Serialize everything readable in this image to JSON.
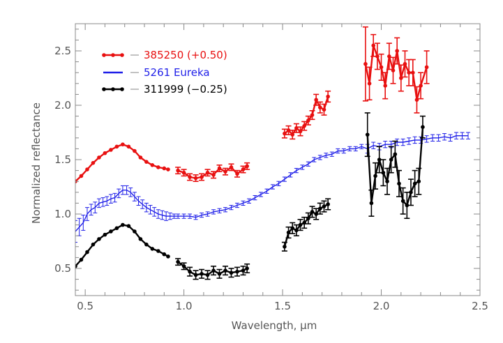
{
  "chart_data": {
    "type": "line",
    "title": "",
    "xlabel": "Wavelength, μm",
    "ylabel": "Normalized reflectance",
    "xlim": [
      0.45,
      2.5
    ],
    "ylim": [
      0.25,
      2.75
    ],
    "xticks": [
      0.5,
      1.0,
      1.5,
      2.0,
      2.5
    ],
    "xtick_labels": [
      "0.5",
      "1.0",
      "1.5",
      "2.0",
      "2.5"
    ],
    "yticks": [
      0.5,
      1.0,
      1.5,
      2.0,
      2.5
    ],
    "ytick_labels": [
      "0.5",
      "1.0",
      "1.5",
      "2.0",
      "2.5"
    ],
    "grid": false,
    "legend_position": "top-left",
    "legend": [
      {
        "label": "385250 (+0.50)",
        "color": "#e81010",
        "style": "line-dots"
      },
      {
        "label": "5261 Eureka",
        "color": "#1f1fe8",
        "style": "line"
      },
      {
        "label": "311999 (−0.25)",
        "color": "#000000",
        "style": "line-dots"
      }
    ],
    "series": [
      {
        "name": "385250 (+0.50)",
        "color": "#e81010",
        "style": "points-lines",
        "segments": [
          {
            "x": [
              0.45,
              0.48,
              0.51,
              0.54,
              0.57,
              0.6,
              0.63,
              0.66,
              0.69,
              0.72,
              0.75,
              0.78,
              0.81,
              0.84,
              0.87,
              0.9,
              0.92
            ],
            "y": [
              1.3,
              1.35,
              1.41,
              1.47,
              1.52,
              1.56,
              1.59,
              1.62,
              1.64,
              1.62,
              1.58,
              1.52,
              1.48,
              1.45,
              1.43,
              1.42,
              1.41
            ],
            "err": []
          },
          {
            "x": [
              0.97,
              1.0,
              1.03,
              1.06,
              1.09,
              1.12,
              1.15,
              1.18,
              1.21,
              1.24,
              1.27,
              1.3,
              1.32
            ],
            "y": [
              1.4,
              1.38,
              1.34,
              1.33,
              1.34,
              1.38,
              1.36,
              1.42,
              1.39,
              1.43,
              1.37,
              1.41,
              1.44
            ],
            "err": [
              0.03,
              0.03,
              0.03,
              0.03,
              0.03,
              0.03,
              0.03,
              0.03,
              0.03,
              0.03,
              0.03,
              0.03,
              0.03
            ]
          },
          {
            "x": [
              1.51,
              1.53,
              1.55,
              1.57,
              1.59,
              1.61,
              1.63,
              1.65,
              1.67,
              1.69,
              1.71,
              1.73
            ],
            "y": [
              1.74,
              1.77,
              1.73,
              1.79,
              1.76,
              1.81,
              1.86,
              1.91,
              2.05,
              1.98,
              1.96,
              2.08
            ],
            "err": [
              0.04,
              0.04,
              0.04,
              0.04,
              0.04,
              0.04,
              0.04,
              0.04,
              0.05,
              0.05,
              0.05,
              0.05
            ]
          },
          {
            "x": [
              1.92,
              1.94,
              1.96,
              1.98,
              2.0,
              2.02,
              2.04,
              2.06,
              2.08,
              2.1,
              2.12,
              2.14,
              2.16,
              2.18,
              2.2,
              2.23
            ],
            "y": [
              2.38,
              2.2,
              2.55,
              2.45,
              2.35,
              2.18,
              2.45,
              2.32,
              2.5,
              2.25,
              2.38,
              2.3,
              2.3,
              2.05,
              2.18,
              2.35
            ],
            "err": [
              0.34,
              0.15,
              0.1,
              0.12,
              0.12,
              0.12,
              0.12,
              0.12,
              0.12,
              0.12,
              0.12,
              0.12,
              0.12,
              0.12,
              0.12,
              0.15
            ]
          }
        ]
      },
      {
        "name": "5261 Eureka",
        "color": "#1f1fe8",
        "style": "line-errorbars",
        "segments": [
          {
            "x": [
              0.45,
              0.47,
              0.49,
              0.51,
              0.53,
              0.55,
              0.57,
              0.59,
              0.61,
              0.63,
              0.65,
              0.67,
              0.69,
              0.71,
              0.73,
              0.75,
              0.77,
              0.79,
              0.81,
              0.83,
              0.85,
              0.87,
              0.89,
              0.91,
              0.93,
              0.95,
              0.97,
              1.0,
              1.03,
              1.06,
              1.09,
              1.12,
              1.15,
              1.18,
              1.21,
              1.24,
              1.27,
              1.3,
              1.33,
              1.36,
              1.39,
              1.42,
              1.45,
              1.48,
              1.51,
              1.54,
              1.57,
              1.6,
              1.63,
              1.66,
              1.69,
              1.72,
              1.75,
              1.78,
              1.81,
              1.84,
              1.87,
              1.9,
              1.93,
              1.96,
              1.99,
              2.02,
              2.05,
              2.08,
              2.11,
              2.14,
              2.17,
              2.2,
              2.23,
              2.26,
              2.29,
              2.32,
              2.35,
              2.38,
              2.41,
              2.44
            ],
            "y": [
              0.84,
              0.88,
              0.92,
              1.0,
              1.04,
              1.06,
              1.1,
              1.11,
              1.12,
              1.14,
              1.15,
              1.19,
              1.22,
              1.22,
              1.2,
              1.16,
              1.12,
              1.09,
              1.06,
              1.04,
              1.02,
              1.0,
              0.99,
              0.98,
              0.98,
              0.98,
              0.98,
              0.98,
              0.98,
              0.97,
              0.99,
              1.0,
              1.02,
              1.03,
              1.04,
              1.06,
              1.08,
              1.1,
              1.12,
              1.15,
              1.18,
              1.21,
              1.25,
              1.28,
              1.32,
              1.36,
              1.4,
              1.43,
              1.46,
              1.5,
              1.52,
              1.54,
              1.55,
              1.58,
              1.58,
              1.6,
              1.6,
              1.62,
              1.6,
              1.63,
              1.62,
              1.64,
              1.64,
              1.66,
              1.66,
              1.67,
              1.68,
              1.68,
              1.69,
              1.7,
              1.7,
              1.71,
              1.7,
              1.72,
              1.72,
              1.72
            ],
            "err": [
              0.1,
              0.08,
              0.07,
              0.06,
              0.05,
              0.05,
              0.04,
              0.04,
              0.04,
              0.04,
              0.04,
              0.04,
              0.04,
              0.04,
              0.04,
              0.04,
              0.04,
              0.04,
              0.04,
              0.04,
              0.04,
              0.04,
              0.04,
              0.04,
              0.03,
              0.02,
              0.02,
              0.02,
              0.02,
              0.02,
              0.02,
              0.02,
              0.02,
              0.02,
              0.02,
              0.02,
              0.02,
              0.02,
              0.02,
              0.02,
              0.02,
              0.02,
              0.02,
              0.02,
              0.02,
              0.02,
              0.02,
              0.02,
              0.02,
              0.02,
              0.02,
              0.02,
              0.02,
              0.02,
              0.02,
              0.02,
              0.02,
              0.02,
              0.04,
              0.03,
              0.03,
              0.03,
              0.03,
              0.03,
              0.03,
              0.03,
              0.03,
              0.03,
              0.03,
              0.03,
              0.03,
              0.03,
              0.03,
              0.03,
              0.03,
              0.03
            ]
          }
        ]
      },
      {
        "name": "311999 (−0.25)",
        "color": "#000000",
        "style": "points-lines",
        "segments": [
          {
            "x": [
              0.45,
              0.48,
              0.51,
              0.54,
              0.57,
              0.6,
              0.63,
              0.66,
              0.69,
              0.72,
              0.75,
              0.78,
              0.81,
              0.84,
              0.87,
              0.9,
              0.92
            ],
            "y": [
              0.52,
              0.58,
              0.65,
              0.72,
              0.77,
              0.81,
              0.84,
              0.87,
              0.9,
              0.89,
              0.84,
              0.77,
              0.72,
              0.68,
              0.66,
              0.63,
              0.61
            ],
            "err": []
          },
          {
            "x": [
              0.97,
              1.0,
              1.03,
              1.06,
              1.09,
              1.12,
              1.15,
              1.18,
              1.21,
              1.24,
              1.27,
              1.3,
              1.32
            ],
            "y": [
              0.56,
              0.52,
              0.47,
              0.44,
              0.45,
              0.44,
              0.48,
              0.45,
              0.48,
              0.46,
              0.47,
              0.48,
              0.5
            ],
            "err": [
              0.03,
              0.03,
              0.04,
              0.04,
              0.04,
              0.04,
              0.04,
              0.04,
              0.04,
              0.04,
              0.04,
              0.04,
              0.04
            ]
          },
          {
            "x": [
              1.51,
              1.53,
              1.55,
              1.57,
              1.59,
              1.61,
              1.63,
              1.65,
              1.67,
              1.69,
              1.71,
              1.73
            ],
            "y": [
              0.7,
              0.83,
              0.87,
              0.85,
              0.9,
              0.92,
              0.96,
              1.02,
              1.0,
              1.05,
              1.07,
              1.09
            ],
            "err": [
              0.04,
              0.05,
              0.05,
              0.05,
              0.05,
              0.05,
              0.05,
              0.05,
              0.05,
              0.05,
              0.05,
              0.05
            ]
          },
          {
            "x": [
              1.93,
              1.95,
              1.97,
              1.99,
              2.01,
              2.03,
              2.05,
              2.07,
              2.09,
              2.11,
              2.13,
              2.15,
              2.17,
              2.19,
              2.21
            ],
            "y": [
              1.73,
              1.1,
              1.35,
              1.5,
              1.38,
              1.3,
              1.5,
              1.55,
              1.28,
              1.12,
              1.08,
              1.2,
              1.28,
              1.3,
              1.8
            ],
            "err": [
              0.2,
              0.12,
              0.12,
              0.12,
              0.12,
              0.12,
              0.12,
              0.12,
              0.12,
              0.12,
              0.12,
              0.12,
              0.12,
              0.12,
              0.1
            ]
          }
        ]
      }
    ]
  }
}
